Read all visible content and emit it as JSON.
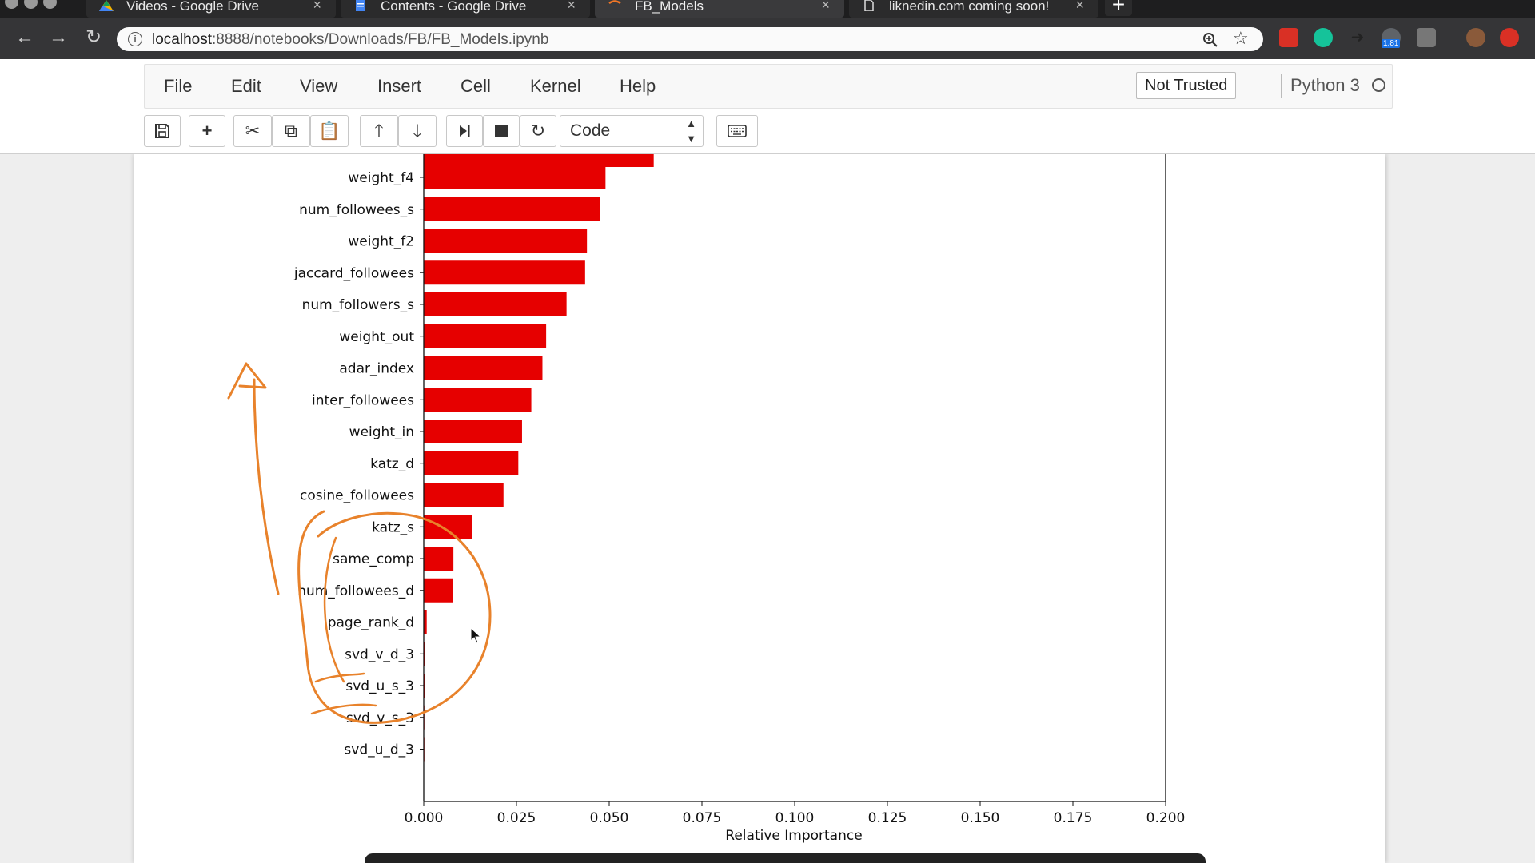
{
  "browser": {
    "tabs": [
      {
        "title": "Videos - Google Drive",
        "icon": "google-drive-icon",
        "active": false
      },
      {
        "title": "Contents - Google Drive",
        "icon": "google-docs-icon",
        "active": false
      },
      {
        "title": "FB_Models",
        "icon": "jupyter-icon",
        "active": true
      },
      {
        "title": "liknedin.com coming soon!",
        "icon": "page-icon",
        "active": false
      }
    ],
    "url_host": "localhost",
    "url_rest": ":8888/notebooks/Downloads/FB/FB_Models.ipynb",
    "extension_badge": "1.81"
  },
  "notebook": {
    "menu": [
      "File",
      "Edit",
      "View",
      "Insert",
      "Cell",
      "Kernel",
      "Help"
    ],
    "trust": "Not Trusted",
    "kernel": "Python 3",
    "cell_type": "Code",
    "toolbar_icons": [
      "save-icon",
      "plus-icon",
      "cut-icon",
      "copy-icon",
      "paste-icon",
      "move-up-icon",
      "move-down-icon",
      "run-icon",
      "stop-icon",
      "restart-icon",
      "keyboard-icon"
    ]
  },
  "chart_data": {
    "type": "bar",
    "orientation": "horizontal",
    "xlabel": "Relative Importance",
    "xlim": [
      0,
      0.2
    ],
    "xticks": [
      "0.000",
      "0.025",
      "0.050",
      "0.075",
      "0.100",
      "0.125",
      "0.150",
      "0.175",
      "0.200"
    ],
    "bar_color": "#e60000",
    "categories": [
      "weight_f4",
      "num_followees_s",
      "weight_f2",
      "jaccard_followees",
      "num_followers_s",
      "weight_out",
      "adar_index",
      "inter_followees",
      "weight_in",
      "katz_d",
      "cosine_followees",
      "katz_s",
      "same_comp",
      "num_followees_d",
      "page_rank_d",
      "svd_v_d_3",
      "svd_u_s_3",
      "svd_v_s_3",
      "svd_u_d_3"
    ],
    "values": [
      0.049,
      0.0475,
      0.044,
      0.0435,
      0.0385,
      0.033,
      0.032,
      0.029,
      0.0265,
      0.0255,
      0.0215,
      0.013,
      0.008,
      0.0078,
      0.0008,
      0.0004,
      0.0004,
      0.0001,
      0.0001
    ],
    "partial_top_bar_value": 0.062
  }
}
